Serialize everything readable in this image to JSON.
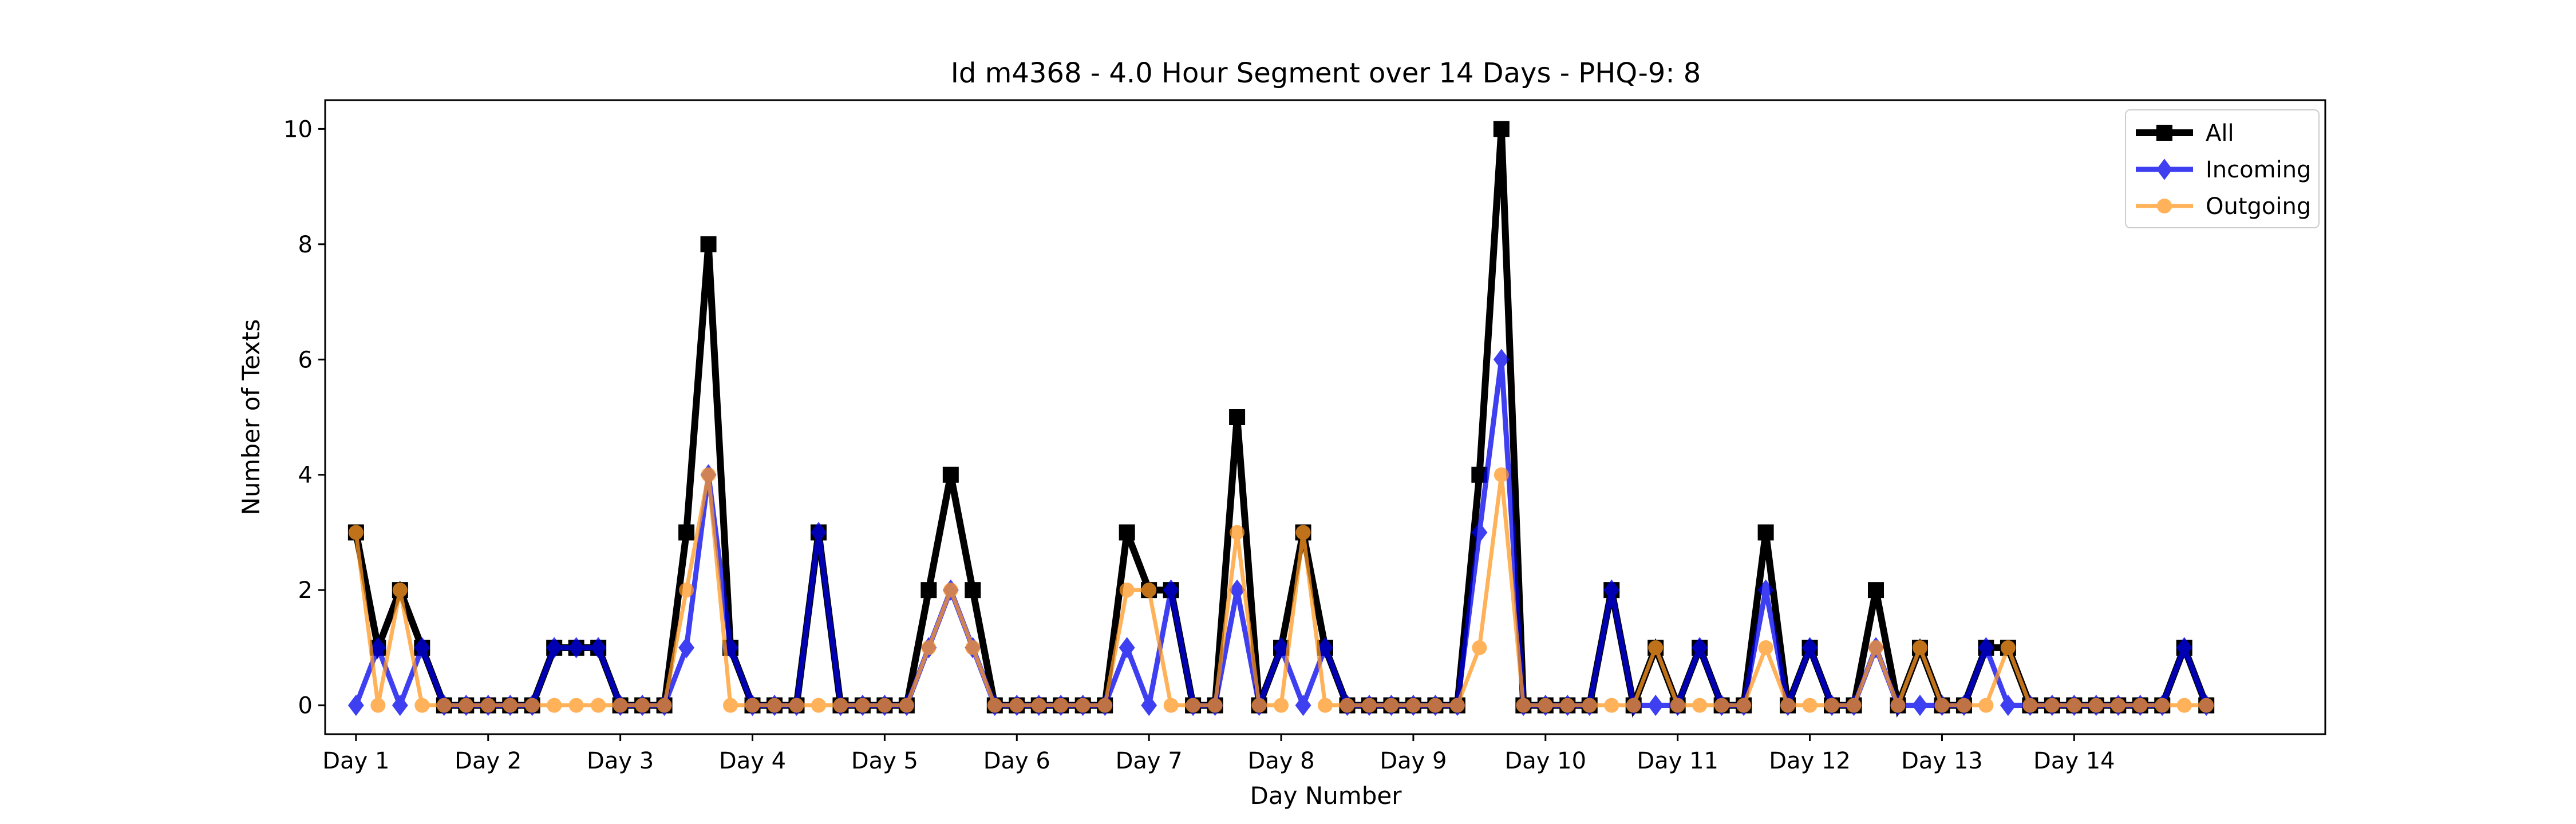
{
  "chart_data": {
    "type": "line",
    "title": "Id m4368 - 4.0 Hour Segment over 14 Days - PHQ-9: 8",
    "xlabel": "Day Number",
    "ylabel": "Number of Texts",
    "x_tick_labels": [
      "Day 1",
      "Day 2",
      "Day 3",
      "Day 4",
      "Day 5",
      "Day 6",
      "Day 7",
      "Day 8",
      "Day 9",
      "Day 10",
      "Day 11",
      "Day 12",
      "Day 13",
      "Day 14"
    ],
    "y_ticks": [
      0,
      2,
      4,
      6,
      8,
      10
    ],
    "ylim": [
      -0.5,
      10.5
    ],
    "xlim": [
      -1.4,
      89.4
    ],
    "grid": false,
    "legend_position": "upper-right",
    "segments_per_day": 6,
    "series": [
      {
        "name": "All",
        "color": "#000000",
        "marker": "square",
        "values": [
          3,
          1,
          2,
          1,
          0,
          0,
          0,
          0,
          0,
          1,
          1,
          1,
          0,
          0,
          0,
          3,
          8,
          1,
          0,
          0,
          0,
          3,
          0,
          0,
          0,
          0,
          2,
          4,
          2,
          0,
          0,
          0,
          0,
          0,
          0,
          3,
          2,
          2,
          0,
          0,
          5,
          0,
          1,
          3,
          1,
          0,
          0,
          0,
          0,
          0,
          0,
          4,
          10,
          0,
          0,
          0,
          0,
          2,
          0,
          1,
          0,
          1,
          0,
          0,
          3,
          0,
          1,
          0,
          0,
          2,
          0,
          1,
          0,
          0,
          1,
          1,
          0,
          0,
          0,
          0,
          0,
          0,
          0,
          1,
          0
        ]
      },
      {
        "name": "Incoming",
        "color": "#0000ee",
        "marker": "diamond",
        "values": [
          0,
          1,
          0,
          1,
          0,
          0,
          0,
          0,
          0,
          1,
          1,
          1,
          0,
          0,
          0,
          1,
          4,
          1,
          0,
          0,
          0,
          3,
          0,
          0,
          0,
          0,
          1,
          2,
          1,
          0,
          0,
          0,
          0,
          0,
          0,
          1,
          0,
          2,
          0,
          0,
          2,
          0,
          1,
          0,
          1,
          0,
          0,
          0,
          0,
          0,
          0,
          3,
          6,
          0,
          0,
          0,
          0,
          2,
          0,
          0,
          0,
          1,
          0,
          0,
          2,
          0,
          1,
          0,
          0,
          1,
          0,
          0,
          0,
          0,
          1,
          0,
          0,
          0,
          0,
          0,
          0,
          0,
          0,
          1,
          0
        ]
      },
      {
        "name": "Outgoing",
        "color": "#ff9922",
        "marker": "circle",
        "values": [
          3,
          0,
          2,
          0,
          0,
          0,
          0,
          0,
          0,
          0,
          0,
          0,
          0,
          0,
          0,
          2,
          4,
          0,
          0,
          0,
          0,
          0,
          0,
          0,
          0,
          0,
          1,
          2,
          1,
          0,
          0,
          0,
          0,
          0,
          0,
          2,
          2,
          0,
          0,
          0,
          3,
          0,
          0,
          3,
          0,
          0,
          0,
          0,
          0,
          0,
          0,
          1,
          4,
          0,
          0,
          0,
          0,
          0,
          0,
          1,
          0,
          0,
          0,
          0,
          1,
          0,
          0,
          0,
          0,
          1,
          0,
          1,
          0,
          0,
          0,
          1,
          0,
          0,
          0,
          0,
          0,
          0,
          0,
          0,
          0
        ]
      }
    ]
  }
}
